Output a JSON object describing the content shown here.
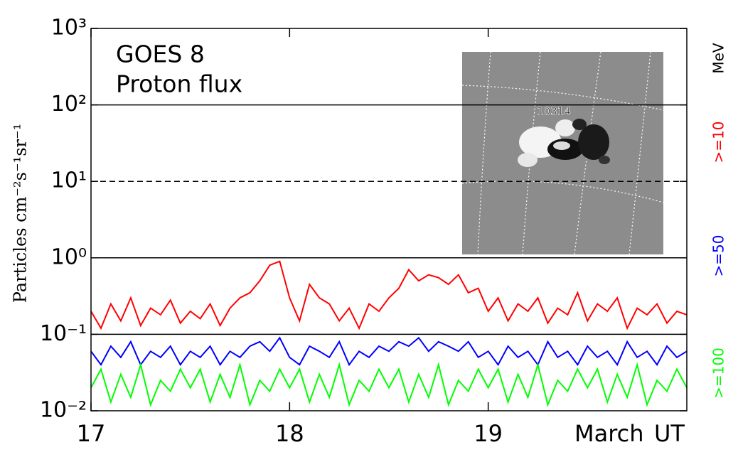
{
  "chart_data": {
    "type": "line",
    "title": "GOES 8",
    "subtitle": "Proton flux",
    "ylabel": "Particles cm⁻²s⁻¹sr⁻¹",
    "xlabel": "March",
    "xunit": "UT",
    "legend_title": "MeV",
    "legend_position": "right",
    "inset_label": "10314",
    "log_y": true,
    "xlim": [
      17,
      20
    ],
    "xticks": [
      17,
      18,
      19
    ],
    "ylim": [
      0.01,
      1000
    ],
    "yticks": [
      {
        "value": 0.01,
        "label": "10⁻²"
      },
      {
        "value": 0.1,
        "label": "10⁻¹"
      },
      {
        "value": 1,
        "label": "10⁰"
      },
      {
        "value": 10,
        "label": "10¹"
      },
      {
        "value": 100,
        "label": "10²"
      },
      {
        "value": 1000,
        "label": "10³"
      }
    ],
    "hlines": [
      {
        "value": 100,
        "style": "solid"
      },
      {
        "value": 10,
        "style": "dashed"
      },
      {
        "value": 1,
        "style": "solid"
      },
      {
        "value": 0.1,
        "style": "solid"
      }
    ],
    "x": [
      17,
      17.05,
      17.1,
      17.15,
      17.2,
      17.25,
      17.3,
      17.35,
      17.4,
      17.45,
      17.5,
      17.55,
      17.6,
      17.65,
      17.7,
      17.75,
      17.8,
      17.85,
      17.9,
      17.95,
      18,
      18.05,
      18.1,
      18.15,
      18.2,
      18.25,
      18.3,
      18.35,
      18.4,
      18.45,
      18.5,
      18.55,
      18.6,
      18.65,
      18.7,
      18.75,
      18.8,
      18.85,
      18.9,
      18.95,
      19,
      19.05,
      19.1,
      19.15,
      19.2,
      19.25,
      19.3,
      19.35,
      19.4,
      19.45,
      19.5,
      19.55,
      19.6,
      19.65,
      19.7,
      19.75,
      19.8,
      19.85,
      19.9,
      19.95,
      20
    ],
    "series": [
      {
        "name": ">=10",
        "color": "#ff0000",
        "values": [
          0.2,
          0.12,
          0.25,
          0.15,
          0.3,
          0.13,
          0.22,
          0.18,
          0.28,
          0.14,
          0.2,
          0.16,
          0.25,
          0.13,
          0.22,
          0.3,
          0.35,
          0.5,
          0.8,
          0.9,
          0.3,
          0.15,
          0.45,
          0.3,
          0.25,
          0.15,
          0.22,
          0.12,
          0.25,
          0.2,
          0.3,
          0.4,
          0.7,
          0.5,
          0.6,
          0.55,
          0.45,
          0.6,
          0.35,
          0.4,
          0.2,
          0.3,
          0.15,
          0.25,
          0.2,
          0.3,
          0.14,
          0.22,
          0.18,
          0.35,
          0.15,
          0.25,
          0.2,
          0.3,
          0.12,
          0.22,
          0.18,
          0.25,
          0.14,
          0.2,
          0.18
        ]
      },
      {
        "name": ">=50",
        "color": "#0000ff",
        "values": [
          0.06,
          0.04,
          0.07,
          0.05,
          0.08,
          0.04,
          0.06,
          0.05,
          0.07,
          0.04,
          0.06,
          0.05,
          0.07,
          0.04,
          0.06,
          0.05,
          0.07,
          0.08,
          0.06,
          0.09,
          0.05,
          0.04,
          0.07,
          0.06,
          0.05,
          0.08,
          0.04,
          0.06,
          0.05,
          0.07,
          0.06,
          0.08,
          0.07,
          0.09,
          0.06,
          0.08,
          0.07,
          0.06,
          0.08,
          0.05,
          0.06,
          0.04,
          0.07,
          0.05,
          0.06,
          0.04,
          0.08,
          0.05,
          0.06,
          0.04,
          0.07,
          0.05,
          0.06,
          0.04,
          0.08,
          0.05,
          0.06,
          0.04,
          0.07,
          0.05,
          0.06
        ]
      },
      {
        "name": ">=100",
        "color": "#00ff00",
        "values": [
          0.02,
          0.035,
          0.013,
          0.03,
          0.015,
          0.04,
          0.012,
          0.025,
          0.018,
          0.035,
          0.02,
          0.035,
          0.013,
          0.03,
          0.015,
          0.04,
          0.012,
          0.025,
          0.018,
          0.035,
          0.02,
          0.035,
          0.013,
          0.03,
          0.015,
          0.04,
          0.012,
          0.025,
          0.018,
          0.035,
          0.02,
          0.035,
          0.013,
          0.03,
          0.015,
          0.04,
          0.012,
          0.025,
          0.018,
          0.035,
          0.02,
          0.035,
          0.013,
          0.03,
          0.015,
          0.04,
          0.012,
          0.025,
          0.018,
          0.035,
          0.02,
          0.035,
          0.013,
          0.03,
          0.015,
          0.04,
          0.012,
          0.025,
          0.018,
          0.035,
          0.02
        ]
      }
    ]
  }
}
